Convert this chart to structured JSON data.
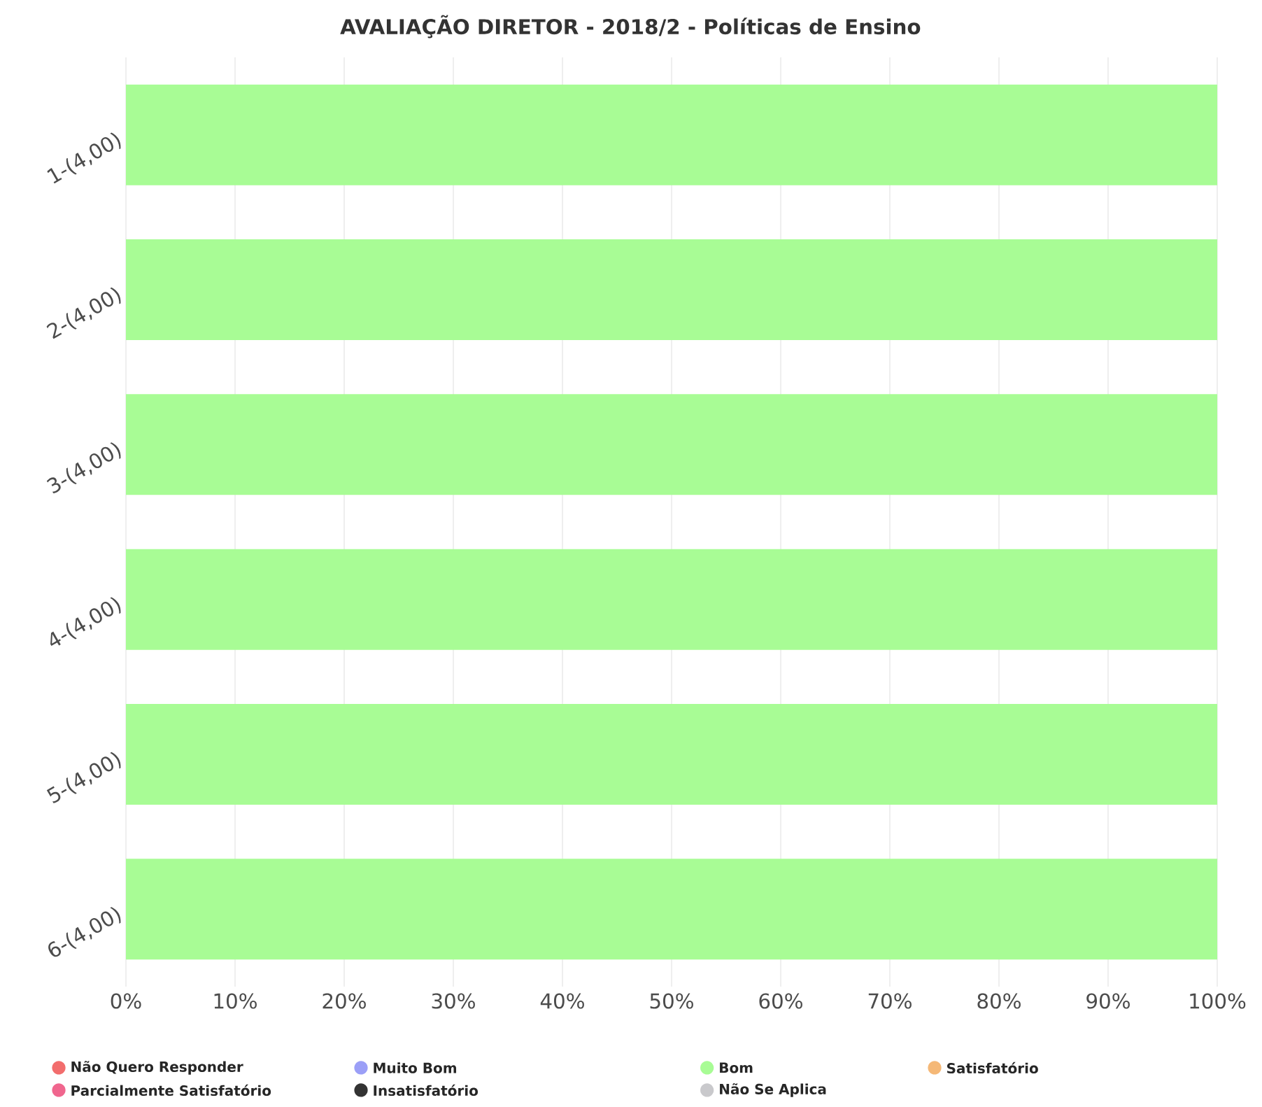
{
  "chart_data": {
    "type": "bar",
    "orientation": "horizontal",
    "stacked": true,
    "title": "AVALIAÇÃO DIRETOR - 2018/2 - Políticas de Ensino",
    "categories": [
      "1-(4,00)",
      "2-(4,00)",
      "3-(4,00)",
      "4-(4,00)",
      "5-(4,00)",
      "6-(4,00)"
    ],
    "series": [
      {
        "name": "Não Quero Responder",
        "color": "#f26d6d",
        "values": [
          0,
          0,
          0,
          0,
          0,
          0
        ]
      },
      {
        "name": "Muito Bom",
        "color": "#9b9ff7",
        "values": [
          0,
          0,
          0,
          0,
          0,
          0
        ]
      },
      {
        "name": "Bom",
        "color": "#a8fc95",
        "values": [
          100,
          100,
          100,
          100,
          100,
          100
        ]
      },
      {
        "name": "Satisfatório",
        "color": "#f5b877",
        "values": [
          0,
          0,
          0,
          0,
          0,
          0
        ]
      },
      {
        "name": "Parcialmente Satisfatório",
        "color": "#f0668e",
        "values": [
          0,
          0,
          0,
          0,
          0,
          0
        ]
      },
      {
        "name": "Insatisfatório",
        "color": "#333333",
        "values": [
          0,
          0,
          0,
          0,
          0,
          0
        ]
      },
      {
        "name": "Não Se Aplica",
        "color": "#c9c9cc",
        "values": [
          0,
          0,
          0,
          0,
          0,
          0
        ]
      }
    ],
    "xlim": [
      0,
      100
    ],
    "xticks": [
      {
        "value": 0,
        "label": "0%"
      },
      {
        "value": 10,
        "label": "10%"
      },
      {
        "value": 20,
        "label": "20%"
      },
      {
        "value": 30,
        "label": "30%"
      },
      {
        "value": 40,
        "label": "40%"
      },
      {
        "value": 50,
        "label": "50%"
      },
      {
        "value": 60,
        "label": "60%"
      },
      {
        "value": 70,
        "label": "70%"
      },
      {
        "value": 80,
        "label": "80%"
      },
      {
        "value": 90,
        "label": "90%"
      },
      {
        "value": 100,
        "label": "100%"
      }
    ],
    "grid": "x",
    "legend": "bottom"
  }
}
